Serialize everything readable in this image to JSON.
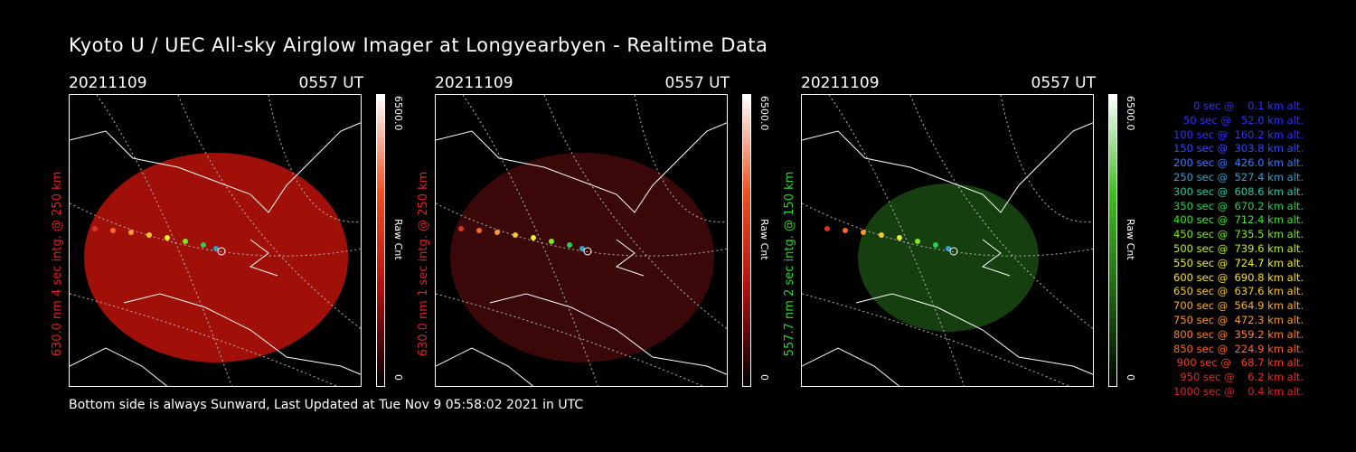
{
  "title": "Kyoto U / UEC All-sky Airglow Imager at Longyearbyen - Realtime Data",
  "footer": "Bottom side is always Sunward, Last Updated at Tue Nov  9 05:58:02 2021 in UTC",
  "panels": [
    {
      "date": "20211109",
      "time": "0557 UT",
      "label": "630.0 nm 4 sec intg. @ 250 km",
      "cb_max": "6500.0",
      "cb_min": "0",
      "cb_unit": "Raw Cnt",
      "color": "#d01010"
    },
    {
      "date": "20211109",
      "time": "0557 UT",
      "label": "630.0 nm 1 sec intg. @ 250 km",
      "cb_max": "6500.0",
      "cb_min": "0",
      "cb_unit": "Raw Cnt",
      "color": "#5a0c0c"
    },
    {
      "date": "20211109",
      "time": "0557 UT",
      "label": "557.7 nm 2 sec intg. @ 150 km",
      "cb_max": "6500.0",
      "cb_min": "0",
      "cb_unit": "Raw Cnt",
      "color": "#1f6a12"
    }
  ],
  "legend": [
    {
      "text": "   0 sec @    0.1 km alt.",
      "color": "#3030ff"
    },
    {
      "text": "  50 sec @   52.0 km alt.",
      "color": "#3030ff"
    },
    {
      "text": " 100 sec @  160.2 km alt.",
      "color": "#3030ff"
    },
    {
      "text": " 150 sec @  303.8 km alt.",
      "color": "#3048ff"
    },
    {
      "text": " 200 sec @  426.0 km alt.",
      "color": "#3a7aff"
    },
    {
      "text": " 250 sec @  527.4 km alt.",
      "color": "#3aa0c8"
    },
    {
      "text": " 300 sec @  608.6 km alt.",
      "color": "#28c8a0"
    },
    {
      "text": " 350 sec @  670.2 km alt.",
      "color": "#28d050"
    },
    {
      "text": " 400 sec @  712.4 km alt.",
      "color": "#40e030"
    },
    {
      "text": " 450 sec @  735.5 km alt.",
      "color": "#80e820"
    },
    {
      "text": " 500 sec @  739.6 km alt.",
      "color": "#c0f020"
    },
    {
      "text": " 550 sec @  724.7 km alt.",
      "color": "#f0f020"
    },
    {
      "text": " 600 sec @  690.8 km alt.",
      "color": "#f8e020"
    },
    {
      "text": " 650 sec @  637.6 km alt.",
      "color": "#f8c830"
    },
    {
      "text": " 700 sec @  564.9 km alt.",
      "color": "#f8b030"
    },
    {
      "text": " 750 sec @  472.3 km alt.",
      "color": "#f89830"
    },
    {
      "text": " 800 sec @  359.2 km alt.",
      "color": "#f88030"
    },
    {
      "text": " 850 sec @  224.9 km alt.",
      "color": "#f86828"
    },
    {
      "text": " 900 sec @   68.7 km alt.",
      "color": "#f04020"
    },
    {
      "text": " 950 sec @    6.2 km alt.",
      "color": "#e03020"
    },
    {
      "text": "1000 sec @    0.4 km alt.",
      "color": "#e02020"
    }
  ]
}
